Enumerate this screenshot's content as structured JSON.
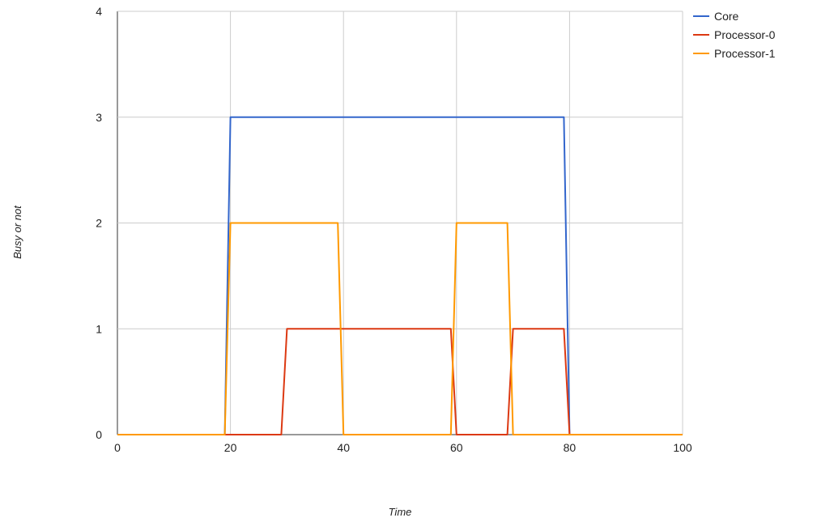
{
  "chart_data": {
    "type": "line",
    "xlabel": "Time",
    "ylabel": "Busy or not",
    "xlim": [
      0,
      100
    ],
    "ylim": [
      0,
      4
    ],
    "x_ticks": [
      0,
      20,
      40,
      60,
      80,
      100
    ],
    "y_ticks": [
      0,
      1,
      2,
      3,
      4
    ],
    "grid": true,
    "legend": "top-right",
    "series": [
      {
        "name": "Core",
        "color": "#3366cc",
        "x": [
          0,
          19,
          20,
          79,
          80,
          100
        ],
        "y": [
          0,
          0,
          3,
          3,
          0,
          0
        ]
      },
      {
        "name": "Processor-0",
        "color": "#dc3912",
        "x": [
          0,
          29,
          30,
          59,
          60,
          69,
          70,
          79,
          80,
          100
        ],
        "y": [
          0,
          0,
          1,
          1,
          0,
          0,
          1,
          1,
          0,
          0
        ]
      },
      {
        "name": "Processor-1",
        "color": "#ff9900",
        "x": [
          0,
          19,
          20,
          39,
          40,
          59,
          60,
          69,
          70,
          100
        ],
        "y": [
          0,
          0,
          2,
          2,
          0,
          0,
          2,
          2,
          0,
          0
        ]
      }
    ]
  }
}
